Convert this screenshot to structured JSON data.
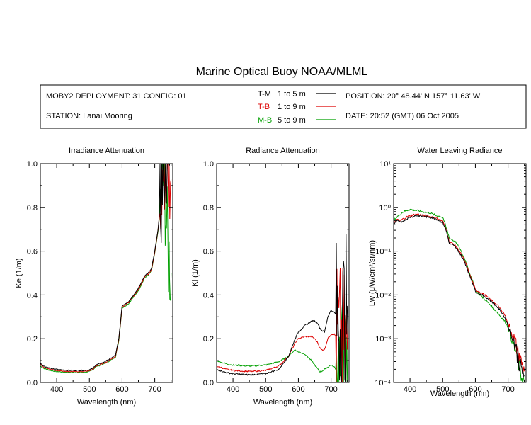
{
  "title": "Marine Optical Buoy NOAA/MLML",
  "info": {
    "deployment": "MOBY2 DEPLOYMENT: 31 CONFIG: 01",
    "station": "STATION: Lanai Mooring",
    "position": "POSITION: 20° 48.44' N   157° 11.63' W",
    "date": "DATE: 20:52 (GMT) 06 Oct 2005"
  },
  "legend": [
    {
      "code": "T-M",
      "range": "1 to 5  m",
      "color": "#000000"
    },
    {
      "code": "T-B",
      "range": "1 to 9  m",
      "color": "#dd0000"
    },
    {
      "code": "M-B",
      "range": "5 to 9  m",
      "color": "#00a000"
    }
  ],
  "chart_data": [
    {
      "type": "line",
      "title": "Irradiance Attenuation",
      "xlabel": "Wavelength (nm)",
      "ylabel": "Ke  (1/m)",
      "xlim": [
        350,
        755
      ],
      "ylim": [
        0,
        1
      ],
      "xticks": [
        400,
        500,
        600,
        700
      ],
      "yticks": [
        0.0,
        0.2,
        0.4,
        0.6,
        0.8,
        1.0
      ],
      "yticklabels": [
        "0.0",
        "0.2",
        "0.4",
        "0.6",
        "0.8",
        "1.0"
      ],
      "series": [
        {
          "name": "T-M",
          "color": "#000000",
          "noise": 0.004,
          "x": [
            350,
            360,
            380,
            400,
            420,
            440,
            460,
            480,
            500,
            510,
            520,
            540,
            560,
            580,
            590,
            600,
            610,
            620,
            640,
            650,
            660,
            670,
            680,
            690,
            700,
            710,
            720,
            725,
            730,
            740,
            750
          ],
          "y": [
            0.09,
            0.075,
            0.065,
            0.06,
            0.057,
            0.055,
            0.055,
            0.055,
            0.058,
            0.065,
            0.08,
            0.09,
            0.105,
            0.125,
            0.2,
            0.35,
            0.36,
            0.37,
            0.41,
            0.43,
            0.46,
            0.49,
            0.5,
            0.52,
            0.6,
            0.7,
            0.85,
            0.95,
            1.0,
            1.0,
            1.0
          ]
        },
        {
          "name": "T-B",
          "color": "#dd0000",
          "noise": 0.004,
          "x": [
            350,
            360,
            380,
            400,
            420,
            440,
            460,
            480,
            500,
            510,
            520,
            540,
            560,
            580,
            590,
            600,
            610,
            620,
            640,
            650,
            660,
            670,
            680,
            690,
            700,
            710,
            720,
            725,
            730,
            740,
            750
          ],
          "y": [
            0.085,
            0.07,
            0.06,
            0.055,
            0.052,
            0.05,
            0.05,
            0.05,
            0.053,
            0.06,
            0.075,
            0.085,
            0.1,
            0.12,
            0.195,
            0.345,
            0.355,
            0.365,
            0.405,
            0.425,
            0.455,
            0.485,
            0.495,
            0.515,
            0.595,
            0.695,
            0.85,
            0.95,
            0.98,
            0.95,
            0.93
          ]
        },
        {
          "name": "M-B",
          "color": "#00a000",
          "noise": 0.004,
          "x": [
            350,
            360,
            380,
            400,
            420,
            440,
            460,
            480,
            500,
            510,
            520,
            540,
            560,
            580,
            590,
            600,
            610,
            620,
            640,
            650,
            660,
            670,
            680,
            690,
            700,
            710,
            720,
            725,
            730,
            740,
            750
          ],
          "y": [
            0.075,
            0.065,
            0.055,
            0.05,
            0.048,
            0.046,
            0.046,
            0.046,
            0.05,
            0.057,
            0.072,
            0.082,
            0.097,
            0.117,
            0.19,
            0.34,
            0.35,
            0.36,
            0.4,
            0.42,
            0.45,
            0.48,
            0.49,
            0.51,
            0.59,
            0.69,
            0.84,
            0.94,
            0.9,
            0.6,
            0.5
          ]
        }
      ]
    },
    {
      "type": "line",
      "title": "Radiance Attenuation",
      "xlabel": "Wavelength (nm)",
      "ylabel": "Kl  (1/m)",
      "xlim": [
        350,
        755
      ],
      "ylim": [
        0,
        1
      ],
      "xticks": [
        400,
        500,
        600,
        700
      ],
      "yticks": [
        0.0,
        0.2,
        0.4,
        0.6,
        0.8,
        1.0
      ],
      "yticklabels": [
        "0.0",
        "0.2",
        "0.4",
        "0.6",
        "0.8",
        "1.0"
      ],
      "series": [
        {
          "name": "T-M",
          "color": "#000000",
          "noise": 0.006,
          "x": [
            350,
            380,
            400,
            450,
            500,
            540,
            570,
            590,
            600,
            620,
            640,
            650,
            660,
            665,
            670,
            680,
            690,
            700,
            710,
            720,
            730,
            740,
            750
          ],
          "y": [
            0.06,
            0.045,
            0.04,
            0.035,
            0.04,
            0.06,
            0.12,
            0.2,
            0.23,
            0.26,
            0.28,
            0.28,
            0.27,
            0.25,
            0.24,
            0.23,
            0.3,
            0.33,
            0.32,
            0.3,
            0.28,
            0.3,
            0.35
          ]
        },
        {
          "name": "T-B",
          "color": "#dd0000",
          "noise": 0.006,
          "x": [
            350,
            380,
            400,
            450,
            500,
            540,
            570,
            590,
            600,
            620,
            640,
            650,
            660,
            665,
            670,
            680,
            690,
            700,
            710,
            720,
            730,
            740,
            750
          ],
          "y": [
            0.075,
            0.06,
            0.055,
            0.05,
            0.055,
            0.075,
            0.12,
            0.18,
            0.2,
            0.21,
            0.21,
            0.2,
            0.18,
            0.16,
            0.15,
            0.15,
            0.2,
            0.22,
            0.22,
            0.2,
            0.18,
            0.17,
            0.15
          ]
        },
        {
          "name": "M-B",
          "color": "#00a000",
          "noise": 0.006,
          "x": [
            350,
            380,
            400,
            450,
            500,
            540,
            570,
            590,
            600,
            620,
            640,
            650,
            660,
            665,
            670,
            680,
            690,
            700,
            710,
            720,
            730,
            740,
            750
          ],
          "y": [
            0.1,
            0.085,
            0.08,
            0.075,
            0.08,
            0.095,
            0.12,
            0.15,
            0.14,
            0.13,
            0.1,
            0.08,
            0.06,
            0.05,
            0.05,
            0.06,
            0.07,
            0.08,
            0.07,
            0.05,
            0.03,
            0.01,
            0.0
          ]
        }
      ]
    },
    {
      "type": "line",
      "title": "Water Leaving Radiance",
      "xlabel": "Wavelength (nm)",
      "ylabel": "Lw  (μW/cm²/sr/nm)",
      "yscale": "log",
      "xlim": [
        350,
        755
      ],
      "ylim": [
        0.0001,
        10
      ],
      "xticks": [
        400,
        500,
        600,
        700
      ],
      "yticks": [
        0.0001,
        0.001,
        0.01,
        0.1,
        1,
        10
      ],
      "yticklabels": [
        "10⁻⁴",
        "10⁻³",
        "10⁻²",
        "10⁻¹",
        "10⁰",
        "10¹"
      ],
      "series": [
        {
          "name": "T-M",
          "color": "#000000",
          "noise": 0.05,
          "x": [
            350,
            360,
            370,
            380,
            390,
            400,
            420,
            440,
            460,
            480,
            500,
            510,
            520,
            530,
            540,
            560,
            580,
            590,
            600,
            620,
            640,
            660,
            680,
            690,
            700,
            710,
            720,
            730,
            740,
            750
          ],
          "y": [
            0.4,
            0.5,
            0.45,
            0.5,
            0.55,
            0.6,
            0.65,
            0.62,
            0.6,
            0.55,
            0.45,
            0.3,
            0.15,
            0.14,
            0.12,
            0.07,
            0.03,
            0.02,
            0.012,
            0.01,
            0.008,
            0.006,
            0.004,
            0.003,
            0.002,
            0.0012,
            0.0008,
            0.0004,
            0.0002,
            0.00015
          ]
        },
        {
          "name": "T-B",
          "color": "#dd0000",
          "noise": 0.05,
          "x": [
            350,
            360,
            370,
            380,
            390,
            400,
            420,
            440,
            460,
            480,
            500,
            510,
            520,
            530,
            540,
            560,
            580,
            590,
            600,
            620,
            640,
            660,
            680,
            690,
            700,
            710,
            720,
            730,
            740,
            750
          ],
          "y": [
            0.42,
            0.52,
            0.5,
            0.55,
            0.6,
            0.65,
            0.7,
            0.66,
            0.62,
            0.58,
            0.48,
            0.32,
            0.16,
            0.15,
            0.13,
            0.075,
            0.032,
            0.021,
            0.013,
            0.011,
            0.0085,
            0.0065,
            0.0045,
            0.0035,
            0.0022,
            0.0014,
            0.0009,
            0.0005,
            0.0003,
            0.00018
          ]
        },
        {
          "name": "M-B",
          "color": "#00a000",
          "noise": 0.05,
          "x": [
            350,
            360,
            370,
            380,
            390,
            400,
            420,
            440,
            460,
            480,
            500,
            510,
            520,
            530,
            540,
            560,
            580,
            590,
            600,
            620,
            640,
            660,
            680,
            690,
            700,
            710,
            720,
            730,
            740,
            750
          ],
          "y": [
            0.5,
            0.6,
            0.7,
            0.8,
            0.85,
            0.9,
            0.85,
            0.8,
            0.75,
            0.65,
            0.6,
            0.35,
            0.2,
            0.18,
            0.16,
            0.085,
            0.035,
            0.022,
            0.013,
            0.009,
            0.0065,
            0.0045,
            0.003,
            0.0025,
            0.0018,
            0.001,
            0.0006,
            0.0003,
            0.00015,
            0.0001
          ]
        }
      ]
    }
  ]
}
